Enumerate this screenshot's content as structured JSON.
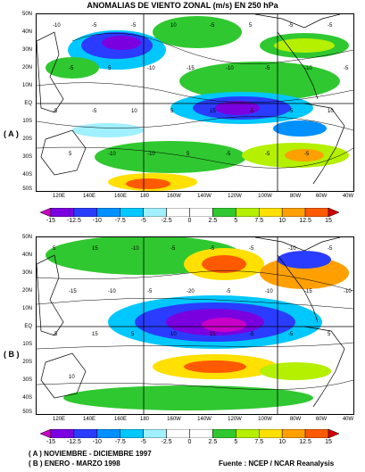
{
  "title": "ANOMALIAS DE VIENTO ZONAL (m/s) EN 250 hPa",
  "panels": [
    {
      "label": "( A )"
    },
    {
      "label": "( B )"
    }
  ],
  "lat_labels": [
    "50N",
    "40N",
    "30N",
    "20N",
    "10N",
    "EQ",
    "10S",
    "20S",
    "30S",
    "40S",
    "50S"
  ],
  "lon_labels": [
    "120E",
    "140E",
    "160E",
    "180",
    "160W",
    "140W",
    "120W",
    "100W",
    "80W",
    "60W",
    "40W"
  ],
  "colorbar_ticks": [
    "-15",
    "-12.5",
    "-10",
    "-7.5",
    "-5",
    "-2.5",
    "0",
    "2.5",
    "5",
    "7.5",
    "10",
    "12.5",
    "15"
  ],
  "colorbar_colors": [
    "#c800c8",
    "#7a00e0",
    "#2a3cff",
    "#0090ff",
    "#00c8ff",
    "#a0f0ff",
    "#ffffff",
    "#ffffff",
    "#30c830",
    "#b4f000",
    "#ffe000",
    "#ffa000",
    "#ff5a00",
    "#d20000"
  ],
  "contour_labels_a": [
    "-10",
    "-5",
    "-5",
    "10",
    "-5",
    "5",
    "-5",
    "-5",
    "-5",
    "5",
    "-10",
    "-15",
    "-10",
    "-5",
    "-10",
    "-5",
    "-5",
    "-5",
    "10",
    "5",
    "15",
    "-5",
    "-5",
    "10",
    "5",
    "-10",
    "-10",
    "5",
    "-5",
    "-5",
    "-5"
  ],
  "contour_labels_b": [
    "5",
    "15",
    "-10",
    "-5",
    "-5",
    "-5",
    "-10",
    "-5",
    "-15",
    "-10",
    "-5",
    "-20",
    "-5",
    "-10",
    "-15",
    "-10",
    "-5",
    "15",
    "5",
    "10",
    "15",
    "-5",
    "-5",
    "5",
    "10"
  ],
  "footer": {
    "line_a": "( A ) NOVIEMBRE - DICIEMBRE 1997",
    "line_b": "( B ) ENERO - MARZO 1998",
    "source": "Fuente : NCEP / NCAR Reanalysis"
  }
}
